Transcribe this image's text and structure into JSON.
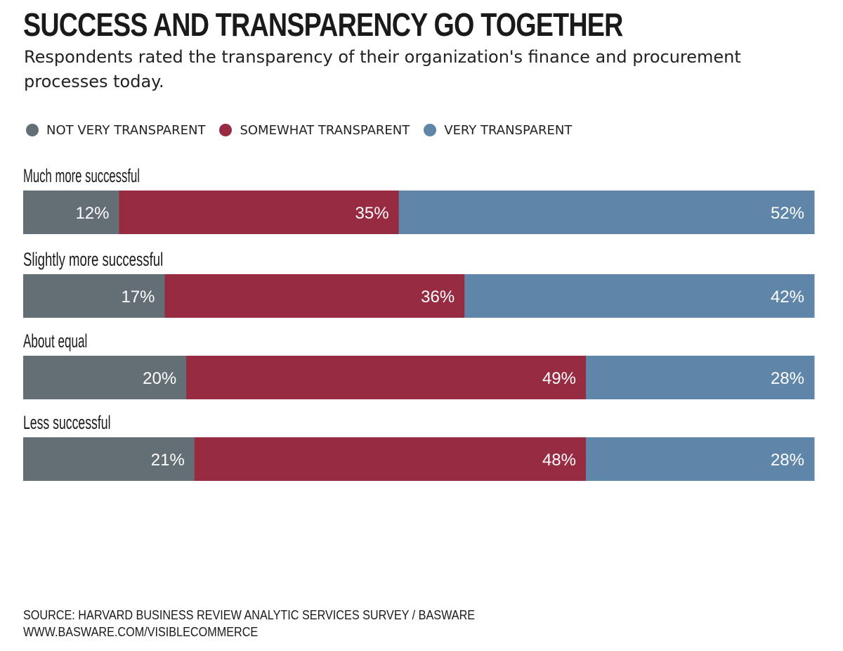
{
  "title": "SUCCESS AND TRANSPARENCY GO TOGETHER",
  "subtitle": "Respondents rated the transparency of their organization's finance and procurement processes today.",
  "legend": [
    {
      "label": "NOT VERY TRANSPARENT",
      "color": "#646e75"
    },
    {
      "label": "SOMEWHAT TRANSPARENT",
      "color": "#962b42"
    },
    {
      "label": "VERY TRANSPARENT",
      "color": "#5f86a8"
    }
  ],
  "chart_data": {
    "type": "bar",
    "orientation": "horizontal",
    "stacked": true,
    "categories": [
      "Much more successful",
      "Slightly more successful",
      "About equal",
      "Less successful"
    ],
    "series": [
      {
        "name": "NOT VERY TRANSPARENT",
        "values": [
          12,
          17,
          20,
          21
        ],
        "labels": [
          "12%",
          "17%",
          "20%",
          "21%"
        ],
        "color": "#646e75"
      },
      {
        "name": "SOMEWHAT TRANSPARENT",
        "values": [
          35,
          36,
          49,
          48
        ],
        "labels": [
          "35%",
          "36%",
          "49%",
          "48%"
        ],
        "color": "#962b42"
      },
      {
        "name": "VERY TRANSPARENT",
        "values": [
          52,
          42,
          28,
          28
        ],
        "labels": [
          "52%",
          "42%",
          "28%",
          "28%"
        ],
        "color": "#5f86a8"
      }
    ],
    "title": "SUCCESS AND TRANSPARENCY GO TOGETHER",
    "legend_position": "top-left",
    "grid": false
  },
  "footer": {
    "source": "SOURCE: HARVARD BUSINESS REVIEW ANALYTIC SERVICES SURVEY /  BASWARE",
    "url": "WWW.BASWARE.COM/VISIBLECOMMERCE"
  }
}
